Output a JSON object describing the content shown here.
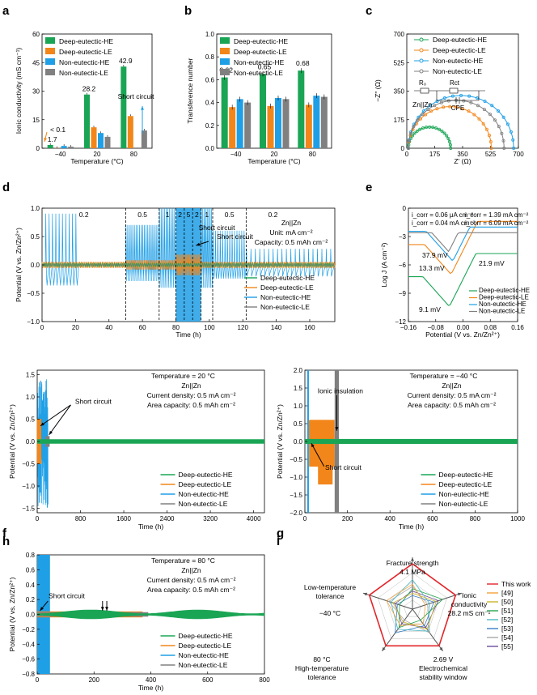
{
  "colors": {
    "dehe": "#1aa555",
    "dele": "#f2861a",
    "nehe": "#1f9fe6",
    "nele": "#808080",
    "thiswork": "#e2262b"
  },
  "legend": [
    "Deep-eutectic-HE",
    "Deep-eutectic-LE",
    "Non-eutectic-HE",
    "Non-eutectic-LE"
  ],
  "panels": {
    "a": {
      "letter": "a",
      "xlabel": "Temperature (°C)",
      "ylabel": "Ionic conductivity (mS cm⁻¹)",
      "ann_lt": "< 0.1",
      "ann_sc": "Short circuit",
      "chart_data": {
        "type": "bar",
        "categories": [
          "−40",
          "20",
          "80"
        ],
        "ylim": [
          0,
          60
        ],
        "yticks": [
          "0",
          "15",
          "30",
          "45",
          "60"
        ],
        "series": [
          {
            "name": "Deep-eutectic-HE",
            "values": [
              1.7,
              28.2,
              42.9
            ]
          },
          {
            "name": "Deep-eutectic-LE",
            "values": [
              0.1,
              11.0,
              16.9
            ]
          },
          {
            "name": "Non-eutectic-HE",
            "values": [
              1.2,
              8.0,
              null
            ]
          },
          {
            "name": "Non-eutectic-LE",
            "values": [
              0.8,
              6.0,
              9.3
            ]
          }
        ],
        "data_labels": [
          "1.7",
          "28.2",
          "42.9"
        ]
      }
    },
    "b": {
      "letter": "b",
      "xlabel": "Temperature (°C)",
      "ylabel": "Transference number",
      "chart_data": {
        "type": "bar",
        "categories": [
          "−40",
          "20",
          "80"
        ],
        "ylim": [
          0,
          1.0
        ],
        "yticks": [
          "0.0",
          "0.2",
          "0.4",
          "0.6",
          "0.8",
          "1.0"
        ],
        "series": [
          {
            "name": "Deep-eutectic-HE",
            "values": [
              0.62,
              0.65,
              0.68
            ]
          },
          {
            "name": "Deep-eutectic-LE",
            "values": [
              0.36,
              0.37,
              0.38
            ]
          },
          {
            "name": "Non-eutectic-HE",
            "values": [
              0.43,
              0.44,
              0.46
            ]
          },
          {
            "name": "Non-eutectic-LE",
            "values": [
              0.4,
              0.43,
              0.45
            ]
          }
        ],
        "data_labels": [
          "0.62",
          "0.65",
          "0.68"
        ]
      }
    },
    "c": {
      "letter": "c",
      "xlabel": "Z' (Ω)",
      "ylabel": "−Z\" (Ω)",
      "cell": "Zn||Zn",
      "circuit": {
        "r0": "R₀",
        "rct": "Rct",
        "cpe": "CPE"
      },
      "chart_data": {
        "type": "scatter",
        "xlim": [
          0,
          700
        ],
        "ylim": [
          0,
          700
        ],
        "xticks": [
          "0",
          "175",
          "350",
          "525",
          "700"
        ],
        "yticks": [
          "0",
          "175",
          "350",
          "525",
          "700"
        ],
        "series": [
          {
            "name": "Deep-eutectic-HE",
            "r0": 10,
            "d": 265
          },
          {
            "name": "Deep-eutectic-LE",
            "r0": 10,
            "d": 520
          },
          {
            "name": "Non-eutectic-HE",
            "r0": 10,
            "d": 660
          },
          {
            "name": "Non-eutectic-LE",
            "r0": 10,
            "d": 600
          }
        ]
      }
    },
    "d": {
      "letter": "d",
      "xlabel": "Time (h)",
      "ylabel": "Potential (V vs. Zn/Zn²⁺)",
      "cell": "Zn||Zn",
      "unit": "Unit: mA cm⁻²",
      "capacity": "Capacity: 0.5 mAh cm⁻²",
      "ann_sc": "Short circuit",
      "rates": [
        "0.2",
        "0.5",
        "1",
        "2",
        "5",
        "2",
        "1",
        "0.5",
        "0.2"
      ],
      "chart_data": {
        "type": "line",
        "xlim": [
          0,
          175
        ],
        "ylim": [
          -1.0,
          1.0
        ],
        "xticks": [
          "0",
          "20",
          "40",
          "60",
          "80",
          "100",
          "120",
          "140",
          "160"
        ],
        "yticks": [
          "−1.0",
          "−0.5",
          "0.0",
          "0.5",
          "1.0"
        ],
        "rate_steps_h": [
          0,
          50,
          70,
          80,
          85,
          90,
          95,
          102,
          122
        ],
        "short_circuit_h": 94
      }
    },
    "e": {
      "letter": "e",
      "xlabel": "Potential (V vs. Zn/Zn²⁺)",
      "ylabel": "Log J (A cm⁻²)",
      "icorr": [
        "i_corr = 0.06 μA cm⁻²",
        "i_corr = 1.39 mA cm⁻²",
        "i_corr = 0.04 mA cm⁻²",
        "i_corr = 6.09 mA cm⁻²"
      ],
      "chart_data": {
        "type": "line",
        "xlim": [
          -0.16,
          0.16
        ],
        "ylim": [
          -12,
          0
        ],
        "xticks": [
          "−0.16",
          "−0.08",
          "0.00",
          "0.08",
          "0.16"
        ],
        "yticks": [
          "−12",
          "−9",
          "−6",
          "−3",
          "0"
        ],
        "minima": [
          {
            "name": "Deep-eutectic-HE",
            "e": -0.04,
            "logj": -10.4
          },
          {
            "name": "Deep-eutectic-LE",
            "e": -0.035,
            "logj": -7.0
          },
          {
            "name": "Non-eutectic-HE",
            "e": -0.03,
            "logj": -5.6
          },
          {
            "name": "Non-eutectic-LE",
            "e": -0.042,
            "logj": -4.6
          }
        ],
        "labels": [
          "37.9 mV",
          "13.3 mV",
          "21.9 mV",
          "9.1 mV"
        ]
      }
    },
    "f": {
      "letter": "f",
      "temp": "Temperature = 20 °C",
      "cell": "Zn||Zn",
      "cd": "Current density: 0.5 mA cm⁻²",
      "ac": "Area capacity: 0.5 mAh cm⁻²",
      "ann_sc": "Short circuit",
      "xlabel": "Time (h)",
      "ylabel": "Potential (V vs. Zn/Zn²⁺)",
      "chart_data": {
        "type": "line",
        "xlim": [
          0,
          4200
        ],
        "ylim": [
          -1.6,
          1.6
        ],
        "xticks": [
          "0",
          "800",
          "1600",
          "2400",
          "3200",
          "4000"
        ],
        "yticks": [
          "−1.5",
          "−1.0",
          "−0.5",
          "0.0",
          "0.5",
          "1.0",
          "1.5"
        ]
      }
    },
    "g": {
      "letter": "g",
      "temp": "Temperature = −40 °C",
      "cell": "Zn||Zn",
      "cd": "Current density: 0.5 mA cm⁻²",
      "ac": "Area capacity: 0.5 mAh cm⁻²",
      "ann_ii": "Ionic insulation",
      "ann_sc": "Short circuit",
      "xlabel": "Time (h)",
      "ylabel": "Potential (V vs. Zn/Zn²⁺)",
      "chart_data": {
        "type": "line",
        "xlim": [
          0,
          1000
        ],
        "ylim": [
          -2.0,
          2.0
        ],
        "xticks": [
          "0",
          "200",
          "400",
          "600",
          "800",
          "1000"
        ],
        "yticks": [
          "−2.0",
          "−1.5",
          "−1.0",
          "−0.5",
          "0.0",
          "0.5",
          "1.0",
          "1.5",
          "2.0"
        ]
      }
    },
    "h": {
      "letter": "h",
      "temp": "Temperature = 80 °C",
      "cell": "Zn||Zn",
      "cd": "Current density: 0.5 mA cm⁻²",
      "ac": "Area capacity: 0.5 mAh cm⁻²",
      "ann_sc": "Short circuit",
      "xlabel": "Time (h)",
      "ylabel": "Potential (V vs. Zn/Zn²⁺)",
      "chart_data": {
        "type": "line",
        "xlim": [
          0,
          800
        ],
        "ylim": [
          -0.8,
          0.8
        ],
        "xticks": [
          "0",
          "200",
          "400",
          "600",
          "800"
        ],
        "yticks": [
          "−0.8",
          "−0.6",
          "−0.4",
          "−0.2",
          "0.0",
          "0.2",
          "0.4",
          "0.6",
          "0.8"
        ]
      }
    },
    "i": {
      "letter": "i",
      "axes": [
        {
          "l1": "Fracture strength",
          "l2": "4.1 MPa"
        },
        {
          "l1": "Ionic",
          "l2": "conductivity",
          "l3": "28.2 mS cm⁻¹"
        },
        {
          "l1": "2.69 V",
          "l2": "Electrochemical",
          "l3": "stability window"
        },
        {
          "l1": "80 °C",
          "l2": "High-temperature",
          "l3": "tolerance"
        },
        {
          "l1": "Low-temperature",
          "l2": "tolerance",
          "l3": "−40 °C"
        }
      ],
      "legend": [
        "This work",
        "[49]",
        "[50]",
        "[51]",
        "[52]",
        "[53]",
        "[54]",
        "[55]"
      ],
      "legend_colors": [
        "#e2262b",
        "#f2a33a",
        "#c9b52a",
        "#27a650",
        "#4cb9c5",
        "#3a7fc9",
        "#a8a8a8",
        "#6f4e9c"
      ],
      "chart_data": {
        "type": "radar",
        "max": 1,
        "series": [
          {
            "name": "This work",
            "values": [
              1,
              1,
              1,
              1,
              1
            ]
          },
          {
            "name": "[49]",
            "values": [
              0.55,
              0.3,
              0.4,
              0.45,
              0.6
            ]
          },
          {
            "name": "[50]",
            "values": [
              0.35,
              0.55,
              0.55,
              0.35,
              0.45
            ]
          },
          {
            "name": "[51]",
            "values": [
              0.45,
              0.7,
              0.3,
              0.5,
              0.3
            ]
          },
          {
            "name": "[52]",
            "values": [
              0.65,
              0.4,
              0.6,
              0.55,
              0.5
            ]
          },
          {
            "name": "[53]",
            "values": [
              0.3,
              0.5,
              0.45,
              0.65,
              0.35
            ]
          },
          {
            "name": "[54]",
            "values": [
              0.5,
              0.35,
              0.65,
              0.3,
              0.55
            ]
          },
          {
            "name": "[55]",
            "values": [
              0.4,
              0.6,
              0.5,
              0.4,
              0.4
            ]
          }
        ]
      }
    }
  }
}
